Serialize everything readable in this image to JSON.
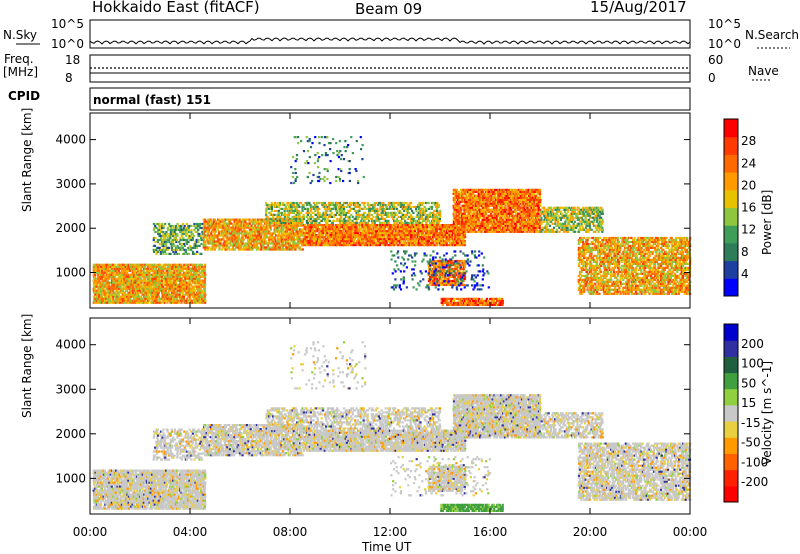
{
  "header": {
    "title": "Hokkaido East (fitACF)",
    "beam": "Beam 09",
    "date": "15/Aug/2017"
  },
  "strip": {
    "nsky_label": "N.Sky",
    "nsky_top": "10^5",
    "nsky_bottom": "10^0",
    "nsearch_label": "N.Search",
    "nsearch_top": "10^5",
    "nsearch_bottom": "10^0",
    "freq_label": "Freq.",
    "freq_unit": "[MHz]",
    "freq_top": "18",
    "freq_bottom": "8",
    "nave_label": "Nave",
    "nave_top": "60",
    "nave_bottom": "0",
    "cpid_label": "CPID",
    "cpid_value": "normal (fast) 151"
  },
  "colors": {
    "power": [
      "#0000ff",
      "#1f3fa0",
      "#2e7d5a",
      "#3f9d5a",
      "#8ec63f",
      "#e8c200",
      "#ff9a00",
      "#ff6a00",
      "#ff3a00",
      "#ff0000"
    ],
    "velocity": [
      "#0000cc",
      "#3030a0",
      "#206040",
      "#40a040",
      "#90d040",
      "#c8c8c8",
      "#e8d040",
      "#ff9a00",
      "#ff6000",
      "#ff2000",
      "#ff0000"
    ]
  },
  "chart_data": [
    {
      "type": "heatmap",
      "ylabel": "Slant Range [km]",
      "colorbar_label": "Power [dB]",
      "colorbar_ticks": [
        "4",
        "8",
        "12",
        "16",
        "20",
        "24",
        "28"
      ],
      "x_ticks": [
        "00:00",
        "04:00",
        "08:00",
        "12:00",
        "16:00",
        "20:00",
        "00:00"
      ],
      "y_ticks": [
        "1000",
        "2000",
        "3000",
        "4000"
      ],
      "ylim": [
        200,
        4600
      ],
      "xlim": [
        0,
        24
      ]
    },
    {
      "type": "heatmap",
      "ylabel": "Slant Range [km]",
      "xlabel": "Time UT",
      "colorbar_label": "Velocity [m s^-1]",
      "colorbar_ticks": [
        "200",
        "100",
        "50",
        "15",
        "-15",
        "-50",
        "-100",
        "-200"
      ],
      "x_ticks": [
        "00:00",
        "04:00",
        "08:00",
        "12:00",
        "16:00",
        "20:00",
        "00:00"
      ],
      "y_ticks": [
        "1000",
        "2000",
        "3000",
        "4000"
      ],
      "ylim": [
        200,
        4600
      ],
      "xlim": [
        0,
        24
      ]
    }
  ]
}
